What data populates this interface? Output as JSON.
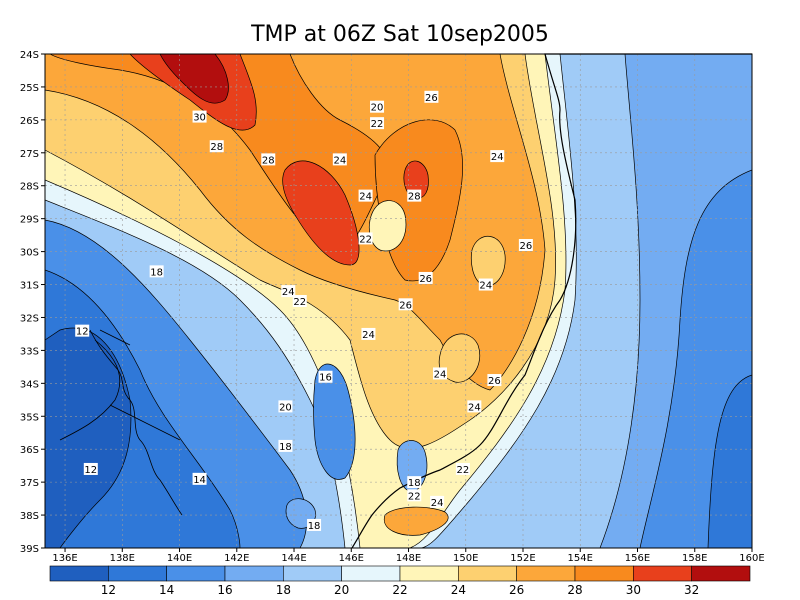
{
  "chart_data": {
    "type": "contour-map",
    "title": "TMP at 06Z Sat 10sep2005",
    "x_axis": {
      "range": [
        135.3,
        160
      ],
      "ticks": [
        {
          "value": 136,
          "label": "136E"
        },
        {
          "value": 138,
          "label": "138E"
        },
        {
          "value": 140,
          "label": "140E"
        },
        {
          "value": 142,
          "label": "142E"
        },
        {
          "value": 144,
          "label": "144E"
        },
        {
          "value": 146,
          "label": "146E"
        },
        {
          "value": 148,
          "label": "148E"
        },
        {
          "value": 150,
          "label": "150E"
        },
        {
          "value": 152,
          "label": "152E"
        },
        {
          "value": 154,
          "label": "154E"
        },
        {
          "value": 156,
          "label": "156E"
        },
        {
          "value": 158,
          "label": "158E"
        },
        {
          "value": 160,
          "label": "160E"
        }
      ]
    },
    "y_axis": {
      "range": [
        -39,
        -24
      ],
      "ticks": [
        {
          "value": -24,
          "label": "24S"
        },
        {
          "value": -25,
          "label": "25S"
        },
        {
          "value": -26,
          "label": "26S"
        },
        {
          "value": -27,
          "label": "27S"
        },
        {
          "value": -28,
          "label": "28S"
        },
        {
          "value": -29,
          "label": "29S"
        },
        {
          "value": -30,
          "label": "30S"
        },
        {
          "value": -31,
          "label": "31S"
        },
        {
          "value": -32,
          "label": "32S"
        },
        {
          "value": -33,
          "label": "33S"
        },
        {
          "value": -34,
          "label": "34S"
        },
        {
          "value": -35,
          "label": "35S"
        },
        {
          "value": -36,
          "label": "36S"
        },
        {
          "value": -37,
          "label": "37S"
        },
        {
          "value": -38,
          "label": "38S"
        },
        {
          "value": -39,
          "label": "39S"
        }
      ]
    },
    "grid": true,
    "colorbar": {
      "position": "bottom",
      "levels": [
        12,
        14,
        16,
        18,
        20,
        22,
        24,
        26,
        28,
        30,
        32
      ],
      "colors": [
        "#1f5fbf",
        "#2f78d8",
        "#4a90e8",
        "#73acf2",
        "#a0cbf7",
        "#e6f6fc",
        "#fff5b8",
        "#fdd070",
        "#fca73a",
        "#f88a1e",
        "#e8401c",
        "#b20e0e"
      ]
    },
    "contour_labels": [
      {
        "lon": 140.7,
        "lat": -25.9,
        "text": "30"
      },
      {
        "lon": 141.3,
        "lat": -26.8,
        "text": "28"
      },
      {
        "lon": 143.1,
        "lat": -27.2,
        "text": "28"
      },
      {
        "lon": 145.6,
        "lat": -27.2,
        "text": "24"
      },
      {
        "lon": 146.9,
        "lat": -25.6,
        "text": "20"
      },
      {
        "lon": 146.9,
        "lat": -26.1,
        "text": "22"
      },
      {
        "lon": 148.8,
        "lat": -25.3,
        "text": "26"
      },
      {
        "lon": 151.1,
        "lat": -27.1,
        "text": "24"
      },
      {
        "lon": 148.2,
        "lat": -28.3,
        "text": "28"
      },
      {
        "lon": 146.5,
        "lat": -28.3,
        "text": "24"
      },
      {
        "lon": 146.5,
        "lat": -29.6,
        "text": "22"
      },
      {
        "lon": 152.1,
        "lat": -29.8,
        "text": "26"
      },
      {
        "lon": 148.6,
        "lat": -30.8,
        "text": "26"
      },
      {
        "lon": 150.7,
        "lat": -31.0,
        "text": "24"
      },
      {
        "lon": 143.8,
        "lat": -31.2,
        "text": "24"
      },
      {
        "lon": 144.2,
        "lat": -31.5,
        "text": "22"
      },
      {
        "lon": 147.9,
        "lat": -31.6,
        "text": "26"
      },
      {
        "lon": 146.6,
        "lat": -32.5,
        "text": "24"
      },
      {
        "lon": 139.2,
        "lat": -30.6,
        "text": "18"
      },
      {
        "lon": 136.6,
        "lat": -32.4,
        "text": "12"
      },
      {
        "lon": 145.1,
        "lat": -33.8,
        "text": "16"
      },
      {
        "lon": 149.1,
        "lat": -33.7,
        "text": "24"
      },
      {
        "lon": 151.0,
        "lat": -33.9,
        "text": "26"
      },
      {
        "lon": 150.3,
        "lat": -34.7,
        "text": "24"
      },
      {
        "lon": 143.7,
        "lat": -34.7,
        "text": "20"
      },
      {
        "lon": 143.7,
        "lat": -35.9,
        "text": "18"
      },
      {
        "lon": 136.9,
        "lat": -36.6,
        "text": "12"
      },
      {
        "lon": 140.7,
        "lat": -36.9,
        "text": "14"
      },
      {
        "lon": 149.9,
        "lat": -36.6,
        "text": "22"
      },
      {
        "lon": 148.2,
        "lat": -37.0,
        "text": "18"
      },
      {
        "lon": 148.2,
        "lat": -37.4,
        "text": "22"
      },
      {
        "lon": 149.0,
        "lat": -37.6,
        "text": "24"
      },
      {
        "lon": 144.7,
        "lat": -38.3,
        "text": "18"
      }
    ]
  }
}
